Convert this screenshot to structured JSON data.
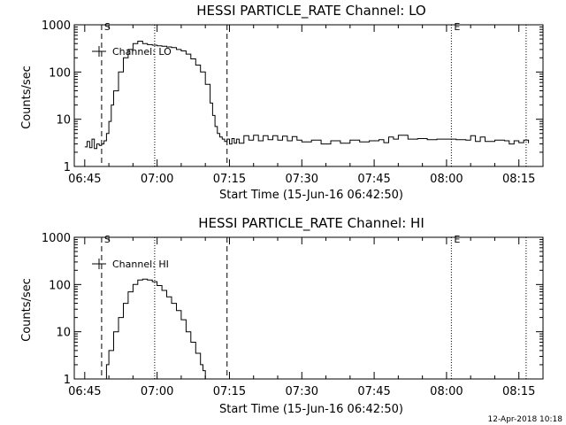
{
  "footer": {
    "timestamp": "12-Apr-2018 10:18"
  },
  "chart_data": [
    {
      "type": "line",
      "title": "HESSI PARTICLE_RATE Channel: LO",
      "xlabel": "Start Time (15-Jun-16 06:42:50)",
      "ylabel": "Counts/sec",
      "yscale": "log",
      "ylim": [
        1,
        1000
      ],
      "xlim": [
        "06:42:50",
        "08:20:00"
      ],
      "x_tick_labels": [
        "06:45",
        "07:00",
        "07:15",
        "07:30",
        "07:45",
        "08:00",
        "08:15"
      ],
      "y_tick_labels": [
        "1",
        "10",
        "100",
        "1000"
      ],
      "legend": {
        "label": "Channel: LO",
        "position": "top-left"
      },
      "markers": [
        {
          "time": "06:48:30",
          "style": "dashed",
          "label": "S"
        },
        {
          "time": "06:59:30",
          "style": "dotted",
          "label": ""
        },
        {
          "time": "07:14:30",
          "style": "dashed",
          "label": ""
        },
        {
          "time": "08:01:00",
          "style": "dotted",
          "label": "E"
        },
        {
          "time": "08:16:30",
          "style": "dotted",
          "label": ""
        }
      ],
      "series": [
        {
          "x": [
            "06:45:00",
            "06:45:30",
            "06:46:00",
            "06:46:30",
            "06:47:00",
            "06:47:30",
            "06:48:00",
            "06:48:30",
            "06:49:00",
            "06:49:30",
            "06:50:00",
            "06:50:30",
            "06:51:00",
            "06:52:00",
            "06:53:00",
            "06:54:00",
            "06:55:00",
            "06:56:00",
            "06:57:00",
            "06:58:00",
            "06:59:00",
            "07:00:00",
            "07:01:00",
            "07:02:00",
            "07:03:00",
            "07:04:00",
            "07:05:00",
            "07:06:00",
            "07:07:00",
            "07:08:00",
            "07:09:00",
            "07:10:00",
            "07:11:00",
            "07:11:30",
            "07:12:00",
            "07:12:30",
            "07:13:00",
            "07:13:30",
            "07:14:00",
            "07:14:30",
            "07:15:00",
            "07:15:30",
            "07:16:00",
            "07:16:30",
            "07:17:00",
            "07:18:00",
            "07:19:00",
            "07:20:00",
            "07:21:00",
            "07:22:00",
            "07:23:00",
            "07:24:00",
            "07:25:00",
            "07:26:00",
            "07:27:00",
            "07:28:00",
            "07:29:00",
            "07:30:00",
            "07:32:00",
            "07:34:00",
            "07:36:00",
            "07:38:00",
            "07:40:00",
            "07:42:00",
            "07:44:00",
            "07:46:00",
            "07:47:00",
            "07:48:00",
            "07:49:00",
            "07:50:00",
            "07:52:00",
            "07:54:00",
            "07:56:00",
            "07:58:00",
            "08:00:00",
            "08:02:00",
            "08:04:00",
            "08:05:00",
            "08:06:00",
            "08:07:00",
            "08:08:00",
            "08:10:00",
            "08:12:00",
            "08:13:00",
            "08:14:00",
            "08:15:00",
            "08:16:00",
            "08:17:00"
          ],
          "y": [
            2.6,
            3.4,
            2.5,
            3.8,
            2.4,
            3.0,
            2.8,
            3.0,
            3.5,
            5.0,
            9.0,
            20,
            40,
            100,
            200,
            300,
            400,
            450,
            400,
            380,
            370,
            360,
            350,
            340,
            330,
            300,
            280,
            240,
            190,
            140,
            100,
            55,
            22,
            12,
            7.0,
            5.0,
            4.2,
            3.8,
            3.4,
            3.8,
            3.0,
            3.9,
            3.1,
            3.8,
            3.1,
            4.5,
            3.6,
            4.6,
            3.5,
            4.5,
            3.7,
            4.5,
            3.6,
            4.4,
            3.5,
            4.3,
            3.6,
            3.3,
            3.6,
            3.0,
            3.5,
            3.1,
            3.6,
            3.3,
            3.5,
            3.7,
            3.2,
            4.2,
            3.8,
            4.6,
            3.8,
            3.9,
            3.7,
            3.8,
            3.8,
            3.7,
            3.6,
            4.5,
            3.4,
            4.2,
            3.4,
            3.6,
            3.5,
            3.0,
            3.5,
            3.2,
            3.6,
            3.1
          ]
        }
      ]
    },
    {
      "type": "line",
      "title": "HESSI PARTICLE_RATE Channel: HI",
      "xlabel": "Start Time (15-Jun-16 06:42:50)",
      "ylabel": "Counts/sec",
      "yscale": "log",
      "ylim": [
        1,
        1000
      ],
      "xlim": [
        "06:42:50",
        "08:20:00"
      ],
      "x_tick_labels": [
        "06:45",
        "07:00",
        "07:15",
        "07:30",
        "07:45",
        "08:00",
        "08:15"
      ],
      "y_tick_labels": [
        "1",
        "10",
        "100",
        "1000"
      ],
      "legend": {
        "label": "Channel: HI",
        "position": "top-left"
      },
      "markers": [
        {
          "time": "06:48:30",
          "style": "dashed",
          "label": "S"
        },
        {
          "time": "06:59:30",
          "style": "dotted",
          "label": ""
        },
        {
          "time": "07:14:30",
          "style": "dashed",
          "label": ""
        },
        {
          "time": "08:01:00",
          "style": "dotted",
          "label": "E"
        },
        {
          "time": "08:16:30",
          "style": "dotted",
          "label": ""
        }
      ],
      "series": [
        {
          "x": [
            "06:49:00",
            "06:49:30",
            "06:50:00",
            "06:51:00",
            "06:52:00",
            "06:53:00",
            "06:54:00",
            "06:55:00",
            "06:56:00",
            "06:57:00",
            "06:58:00",
            "06:59:00",
            "07:00:00",
            "07:01:00",
            "07:02:00",
            "07:03:00",
            "07:04:00",
            "07:05:00",
            "07:06:00",
            "07:07:00",
            "07:08:00",
            "07:09:00",
            "07:09:30",
            "07:10:00"
          ],
          "y": [
            1.0,
            2.0,
            4.0,
            10,
            20,
            40,
            70,
            100,
            125,
            130,
            125,
            115,
            95,
            75,
            55,
            40,
            28,
            18,
            10,
            6.0,
            3.5,
            2.0,
            1.5,
            1.0
          ]
        }
      ]
    }
  ]
}
